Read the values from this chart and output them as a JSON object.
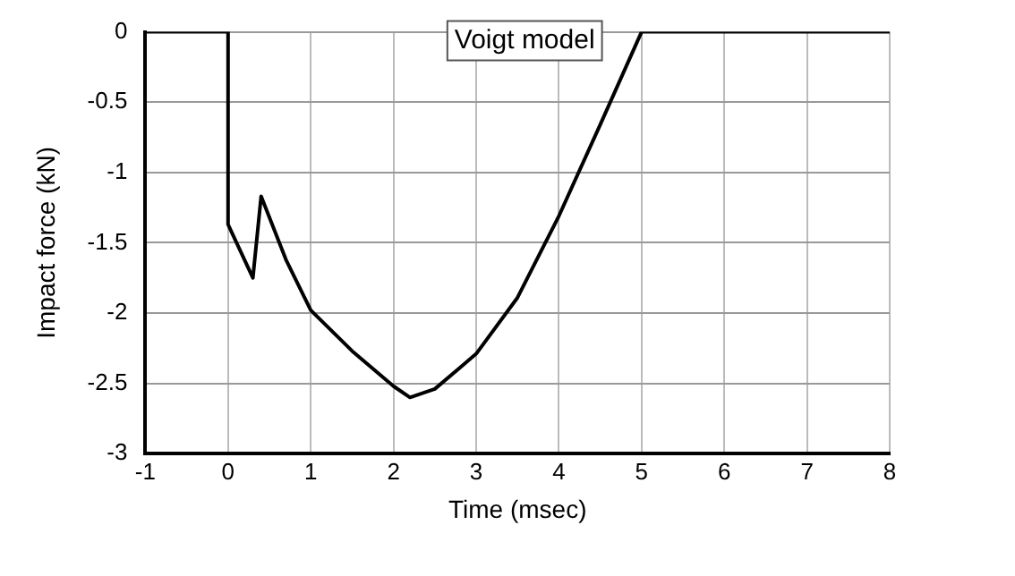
{
  "chart_data": {
    "type": "line",
    "title": "Voigt model",
    "xlabel": "Time (msec)",
    "ylabel": "Impact force (kN)",
    "x": [
      -1,
      0,
      0,
      0.3,
      0.4,
      0.7,
      1,
      1.5,
      2,
      2.2,
      2.5,
      3,
      3.5,
      4,
      4.5,
      5,
      8
    ],
    "series": [
      {
        "color": "#000000",
        "values": [
          0,
          0,
          -1.37,
          -1.75,
          -1.17,
          -1.62,
          -1.98,
          -2.27,
          -2.52,
          -2.6,
          -2.54,
          -2.29,
          -1.89,
          -1.31,
          -0.66,
          0,
          0
        ]
      }
    ],
    "xlim": [
      -1,
      8
    ],
    "xticks": [
      -1,
      0,
      1,
      2,
      3,
      4,
      5,
      6,
      7,
      8
    ],
    "ylim": [
      -3,
      0
    ],
    "yticks": [
      -3,
      -2.5,
      -2,
      -1.5,
      -1,
      -0.5,
      0
    ],
    "grid": true,
    "legend": false,
    "marker": "none",
    "line_style": "solid"
  }
}
